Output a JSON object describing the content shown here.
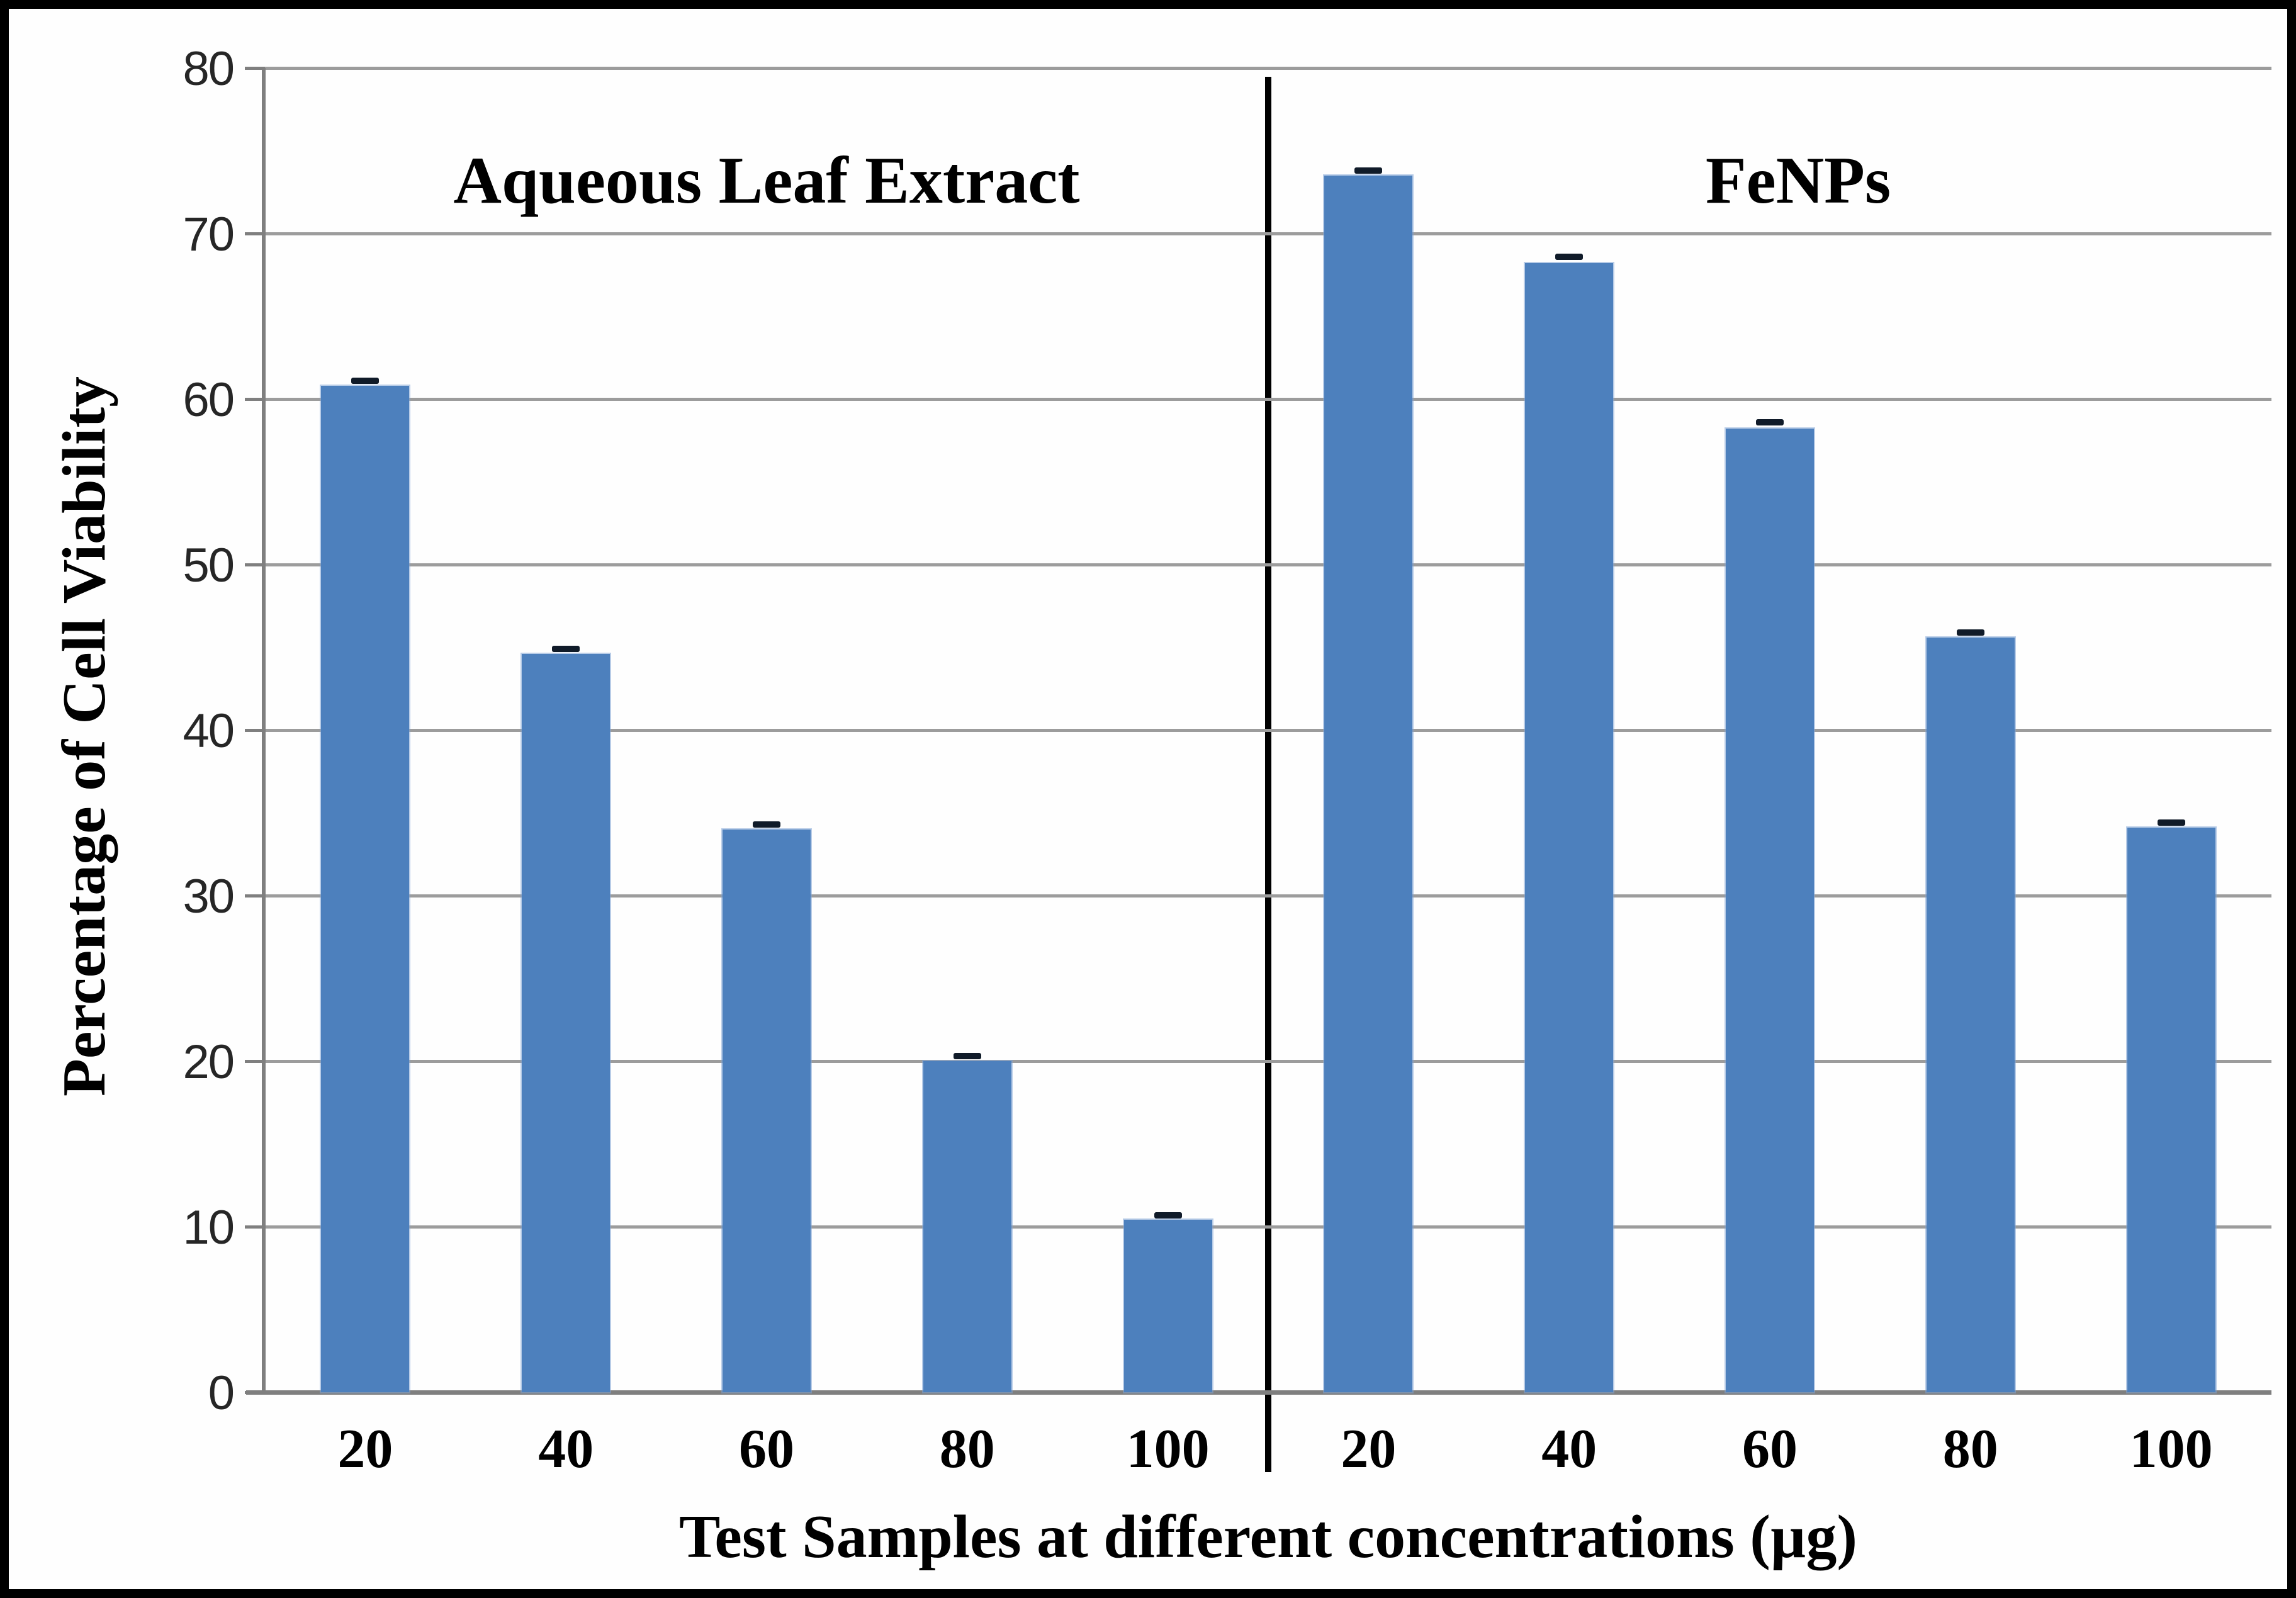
{
  "chart_data": {
    "type": "bar",
    "title": "",
    "xlabel": "Test Samples at different concentrations (µg)",
    "ylabel": "Percentage of Cell Viability",
    "ylim": [
      0,
      80
    ],
    "yticks": [
      0,
      10,
      20,
      30,
      40,
      50,
      60,
      70,
      80
    ],
    "grid": true,
    "legend": "none",
    "categories": [
      "20",
      "40",
      "60",
      "80",
      "100"
    ],
    "series": [
      {
        "name": "Aqueous Leaf Extract",
        "values": [
          60.8,
          44.6,
          34.0,
          20.0,
          10.4
        ],
        "errors": [
          0.3,
          0.3,
          0.3,
          0.3,
          0.3
        ]
      },
      {
        "name": "FeNPs",
        "values": [
          73.5,
          68.2,
          58.2,
          45.6,
          34.1
        ],
        "errors": [
          0.3,
          0.4,
          0.4,
          0.3,
          0.3
        ]
      }
    ],
    "bar_color": "#4d80bd",
    "error_color": "#101b29",
    "gridline_color": "#9c9c9c",
    "axis_color": "#7f7f7f",
    "divider_color": "#000000",
    "frame_color": "#000000",
    "layout": "two half-panels separated by a vertical black divider line"
  }
}
